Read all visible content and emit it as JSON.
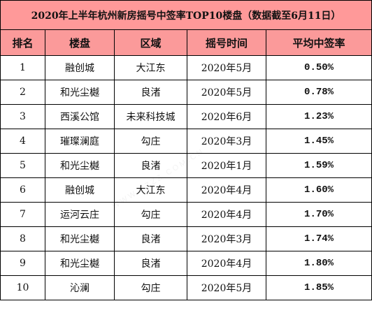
{
  "title": "2020年上半年杭州新房摇号中签率TOP10楼盘（数据截至6月11日）",
  "headers": {
    "rank": "排名",
    "project": "楼盘",
    "area": "区域",
    "lottery_time": "摇号时间",
    "avg_rate": "平均中签率"
  },
  "rows": [
    {
      "rank": "1",
      "project": "融创城",
      "area": "大江东",
      "lottery_time": "2020年5月",
      "avg_rate": "0.50%"
    },
    {
      "rank": "2",
      "project": "和光尘樾",
      "area": "良渚",
      "lottery_time": "2020年5月",
      "avg_rate": "0.78%"
    },
    {
      "rank": "3",
      "project": "西溪公馆",
      "area": "未来科技城",
      "lottery_time": "2020年6月",
      "avg_rate": "1.23%"
    },
    {
      "rank": "4",
      "project": "璀璨澜庭",
      "area": "勾庄",
      "lottery_time": "2020年3月",
      "avg_rate": "1.45%"
    },
    {
      "rank": "5",
      "project": "和光尘樾",
      "area": "良渚",
      "lottery_time": "2020年1月",
      "avg_rate": "1.59%"
    },
    {
      "rank": "6",
      "project": "融创城",
      "area": "大江东",
      "lottery_time": "2020年4月",
      "avg_rate": "1.60%"
    },
    {
      "rank": "7",
      "project": "运河云庄",
      "area": "勾庄",
      "lottery_time": "2020年4月",
      "avg_rate": "1.70%"
    },
    {
      "rank": "8",
      "project": "和光尘樾",
      "area": "良渚",
      "lottery_time": "2020年3月",
      "avg_rate": "1.74%"
    },
    {
      "rank": "9",
      "project": "和光尘樾",
      "area": "良渚",
      "lottery_time": "2020年4月",
      "avg_rate": "1.80%"
    },
    {
      "rank": "10",
      "project": "沁澜",
      "area": "勾庄",
      "lottery_time": "2020年5月",
      "avg_rate": "1.85%"
    }
  ],
  "watermark": "WWW.ZZZZ.COM.CN",
  "colors": {
    "title_bg": "#ff9999",
    "header_bg": "#fb9a9a",
    "rate_text": "#ff0000",
    "border": "#000000"
  }
}
